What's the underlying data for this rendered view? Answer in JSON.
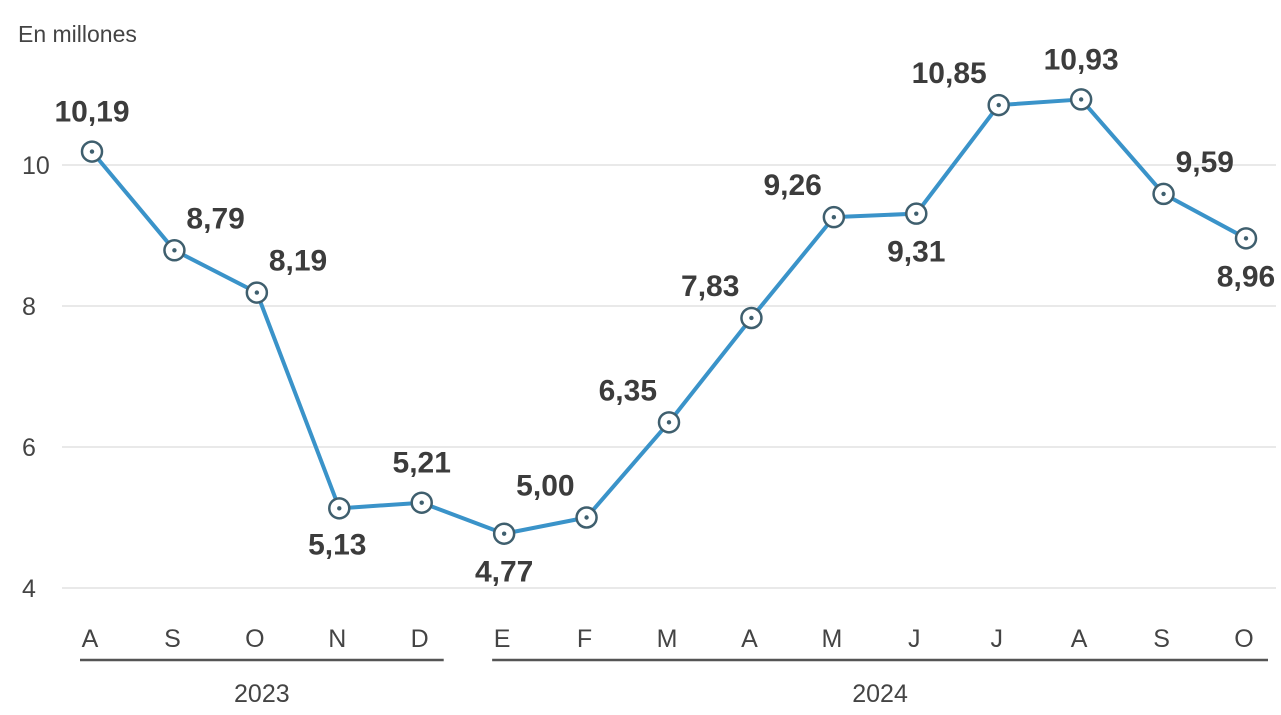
{
  "chart_data": {
    "type": "line",
    "title": "",
    "ylabel": "En millones",
    "xlabel": "",
    "ylim": [
      4,
      11
    ],
    "yticks": [
      4,
      6,
      8,
      10
    ],
    "grid": true,
    "categories": [
      "A",
      "S",
      "O",
      "N",
      "D",
      "E",
      "F",
      "M",
      "A",
      "M",
      "J",
      "J",
      "A",
      "S",
      "O"
    ],
    "groups": [
      {
        "label": "2023",
        "start": 0,
        "end": 4
      },
      {
        "label": "2024",
        "start": 5,
        "end": 14
      }
    ],
    "series": [
      {
        "values": [
          10.19,
          8.79,
          8.19,
          5.13,
          5.21,
          4.77,
          5.0,
          6.35,
          7.83,
          9.26,
          9.31,
          10.85,
          10.93,
          9.59,
          8.96
        ],
        "labels": [
          "10,19",
          "8,79",
          "8,19",
          "5,13",
          "5,21",
          "4,77",
          "5,00",
          "6,35",
          "7,83",
          "9,26",
          "9,31",
          "10,85",
          "10,93",
          "9,59",
          "8,96"
        ],
        "label_positions": [
          "above",
          "above-right",
          "above-right",
          "below-left",
          "above",
          "below",
          "above-left",
          "above-left",
          "above-left",
          "above-left",
          "below",
          "above-left",
          "above",
          "above-right",
          "below"
        ]
      }
    ]
  },
  "style": {
    "line_color": "#3a93c9",
    "marker_color": "#3f5f6e",
    "grid_color": "#e2e2e2",
    "text_color": "#444444"
  }
}
